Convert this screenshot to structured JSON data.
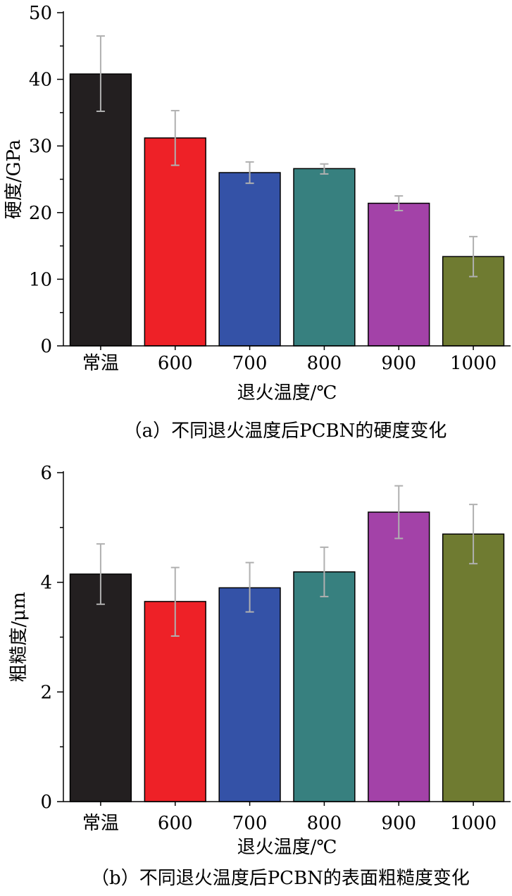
{
  "chart_data": [
    {
      "type": "bar",
      "categories": [
        "常温",
        "600",
        "700",
        "800",
        "900",
        "1000"
      ],
      "values": [
        40.8,
        31.2,
        26.0,
        26.6,
        21.4,
        13.4
      ],
      "errors": [
        [
          35.2,
          46.5
        ],
        [
          27.1,
          35.3
        ],
        [
          24.4,
          27.6
        ],
        [
          25.8,
          27.3
        ],
        [
          20.3,
          22.5
        ],
        [
          10.4,
          16.4
        ]
      ],
      "colors": [
        "#231f20",
        "#ee2127",
        "#3452a7",
        "#37807f",
        "#a342a8",
        "#6f7b31"
      ],
      "xlabel": "退火温度/℃",
      "ylabel": "硬度/GPa",
      "ylim": [
        0,
        50
      ],
      "yticks": [
        0,
        10,
        20,
        30,
        40,
        50
      ],
      "caption": "（a）不同退火温度后PCBN的硬度变化"
    },
    {
      "type": "bar",
      "categories": [
        "常温",
        "600",
        "700",
        "800",
        "900",
        "1000"
      ],
      "values": [
        4.15,
        3.65,
        3.9,
        4.19,
        5.28,
        4.88
      ],
      "errors": [
        [
          3.6,
          4.7
        ],
        [
          3.02,
          4.27
        ],
        [
          3.46,
          4.36
        ],
        [
          3.74,
          4.64
        ],
        [
          4.8,
          5.76
        ],
        [
          4.34,
          5.42
        ]
      ],
      "colors": [
        "#231f20",
        "#ee2127",
        "#3452a7",
        "#37807f",
        "#a342a8",
        "#6f7b31"
      ],
      "xlabel": "退火温度/℃",
      "ylabel": "粗糙度/μm",
      "ylim": [
        0,
        6
      ],
      "yticks": [
        0,
        2,
        4,
        6
      ],
      "caption": "（b）不同退火温度后PCBN的表面粗糙度变化"
    }
  ]
}
